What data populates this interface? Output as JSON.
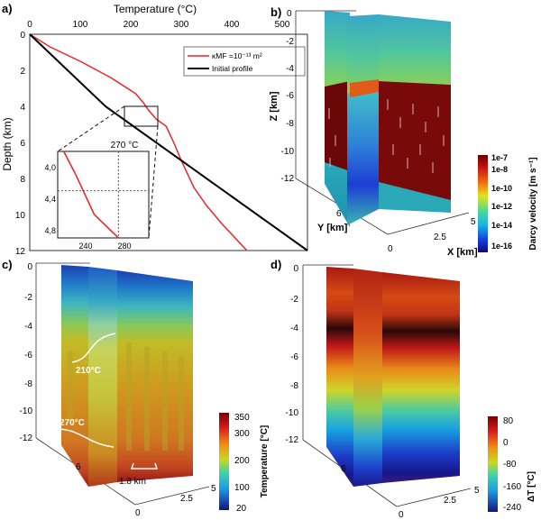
{
  "panels": {
    "a": {
      "label": "a)",
      "x_title": "Temperature (°C)",
      "y_title": "Depth (km)",
      "x_ticks": [
        "0",
        "100",
        "200",
        "300",
        "400",
        "500"
      ],
      "y_ticks": [
        "0",
        "2",
        "4",
        "6",
        "8",
        "10",
        "12"
      ],
      "legend_kmf_label": "κMF =10⁻¹³ m²",
      "legend_initial_label": "Initial profile",
      "inset_title": "270 °C",
      "inset_y_ticks": [
        "4,0",
        "4,4",
        "4,8"
      ],
      "inset_x_ticks": [
        "240",
        "280"
      ]
    },
    "b": {
      "label": "b)",
      "z_title": "Z [km]",
      "y_title": "Y [km]",
      "x_title": "X [km]",
      "z_ticks": [
        "0",
        "-2",
        "-4",
        "-6",
        "-8",
        "-10",
        "-12"
      ],
      "y_tick": "6",
      "x_ticks": [
        "5",
        "2.5",
        "0"
      ],
      "colorbar_title": "Darcy velocity [m s⁻¹]",
      "colorbar_ticks": [
        "1e-7",
        "1e-8",
        "1e-10",
        "1e-12",
        "1e-14",
        "1e-16"
      ]
    },
    "c": {
      "label": "c)",
      "z_ticks": [
        "0",
        "-2",
        "-4",
        "-6",
        "-8",
        "-10",
        "-12"
      ],
      "y_tick": "6",
      "x_ticks": [
        "5",
        "2.5",
        "0"
      ],
      "annotation_210": "210°C",
      "annotation_270": "270°C",
      "annotation_spacing": "1.8 km",
      "colorbar_title": "Temperature [°C]",
      "colorbar_ticks": [
        "350",
        "300",
        "200",
        "100",
        "20"
      ]
    },
    "d": {
      "label": "d)",
      "z_ticks": [
        "0",
        "-2",
        "-4",
        "-6",
        "-8",
        "-10",
        "-12"
      ],
      "y_tick": "6",
      "x_ticks": [
        "5",
        "2.5",
        "0"
      ],
      "colorbar_title": "ΔT [°C]",
      "colorbar_ticks": [
        "80",
        "0",
        "-80",
        "-160",
        "-240"
      ]
    }
  },
  "chart_data": {
    "type": "line",
    "title": "",
    "xlabel": "Temperature (°C)",
    "ylabel": "Depth (km)",
    "xlim": [
      0,
      550
    ],
    "ylim": [
      0,
      12
    ],
    "series": [
      {
        "name": "κMF =10⁻¹³ m²",
        "color": "#e8272a",
        "points": [
          [
            0,
            0
          ],
          [
            40,
            0.7
          ],
          [
            100,
            1.5
          ],
          [
            160,
            2.4
          ],
          [
            210,
            3.3
          ],
          [
            225,
            3.8
          ],
          [
            235,
            4.2
          ],
          [
            250,
            4.7
          ],
          [
            270,
            5.1
          ],
          [
            285,
            6.0
          ],
          [
            300,
            7.0
          ],
          [
            325,
            8.5
          ],
          [
            350,
            9.5
          ],
          [
            380,
            10.5
          ],
          [
            430,
            12
          ]
        ]
      },
      {
        "name": "Initial profile",
        "color": "#000000",
        "points": [
          [
            0,
            0
          ],
          [
            150,
            4
          ],
          [
            200,
            5
          ],
          [
            550,
            12
          ]
        ]
      }
    ],
    "inset": {
      "xlim": [
        220,
        295
      ],
      "ylim": [
        3.9,
        5.0
      ],
      "reference_x": 270,
      "reference_y": 4.4
    }
  }
}
